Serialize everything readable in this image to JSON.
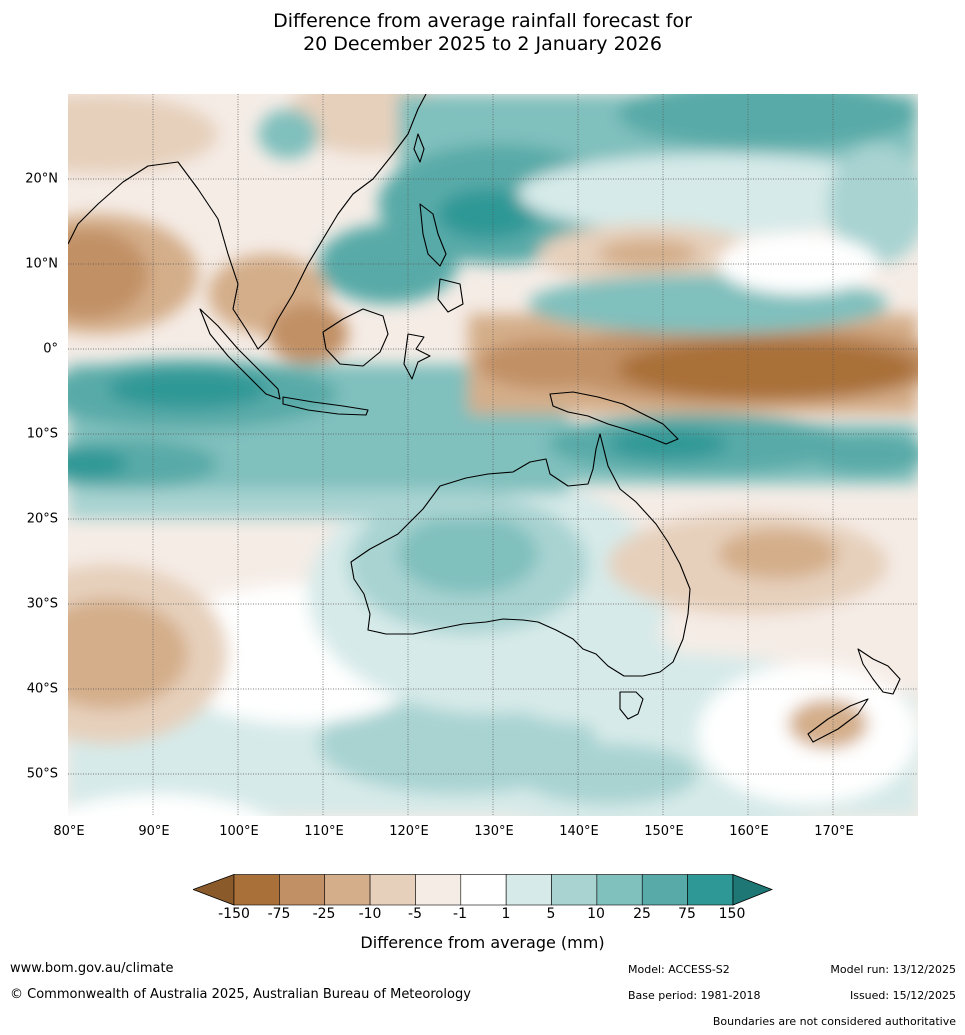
{
  "title_line1": "Difference from average rainfall forecast for",
  "title_line2": "20 December 2025 to 2 January 2026",
  "map": {
    "lat_labels": [
      "20°N",
      "10°N",
      "0°",
      "10°S",
      "20°S",
      "30°S",
      "40°S",
      "50°S"
    ],
    "lon_labels": [
      "80°E",
      "90°E",
      "100°E",
      "110°E",
      "120°E",
      "130°E",
      "140°E",
      "150°E",
      "160°E",
      "170°E"
    ],
    "lon_range": [
      80,
      180
    ],
    "lat_range": [
      -55,
      30
    ]
  },
  "colorbar": {
    "title": "Difference from average (mm)",
    "ticks": [
      "-150",
      "-75",
      "-25",
      "-10",
      "-5",
      "-1",
      "1",
      "5",
      "10",
      "25",
      "75",
      "150"
    ],
    "colors": [
      "#8a5a2b",
      "#a97039",
      "#c19065",
      "#d4ae8a",
      "#e6d0bc",
      "#f5ece6",
      "#ffffff",
      "#d6eae9",
      "#a8d3d1",
      "#80c0bd",
      "#58aaa8",
      "#2e9896",
      "#1f7775"
    ]
  },
  "footer": {
    "website": "www.bom.gov.au/climate",
    "copyright": "© Commonwealth of Australia 2025, Australian Bureau of Meteorology",
    "model": "Model: ACCESS-S2",
    "base_period": "Base period: 1981-2018",
    "model_run": "Model run: 13/12/2025",
    "issued": "Issued: 15/12/2025",
    "disclaimer": "Boundaries are not considered authoritative"
  }
}
